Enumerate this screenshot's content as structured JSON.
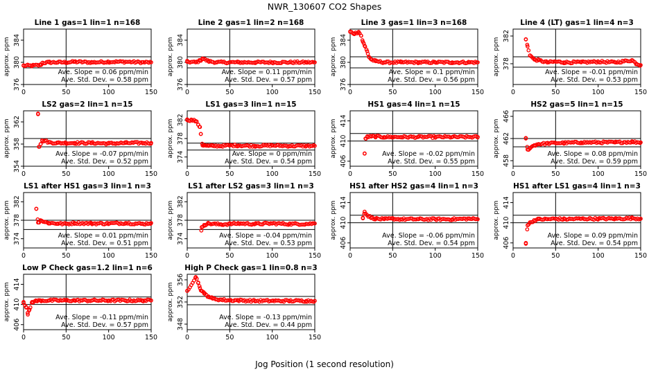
{
  "figure": {
    "title": "NWR_130607  CO2 Shapes",
    "xlabel": "Jog Position (1 second resolution)",
    "ylabel": "approx. ppm",
    "marker_color": "#ff0000",
    "x_ticks": [
      "0",
      "50",
      "100",
      "150"
    ]
  },
  "chart_data": [
    {
      "type": "scatter",
      "title": "Line 1 gas=1 lin=1 n=168",
      "ylabel": "approx. ppm",
      "xlim": [
        0,
        150
      ],
      "ylim": [
        376,
        386
      ],
      "yticks": [
        "376",
        "380",
        "384"
      ],
      "hlines": [
        381,
        379
      ],
      "xgrid": [
        50
      ],
      "slope_text": "Ave. Slope = 0.06 ppm/min",
      "std_text": "Ave. Std. Dev. = 0.58 ppm",
      "x": [
        0,
        10,
        20,
        22,
        30,
        40,
        50,
        60,
        80,
        100,
        120,
        140,
        150
      ],
      "y": [
        379.4,
        379.4,
        379.5,
        379.9,
        380.0,
        380.0,
        380.0,
        380.1,
        380.0,
        380.1,
        380.1,
        380.0,
        380.0
      ]
    },
    {
      "type": "scatter",
      "title": "Line 2 gas=1 lin=2 n=168",
      "ylabel": "approx. ppm",
      "xlim": [
        0,
        150
      ],
      "ylim": [
        376,
        386
      ],
      "yticks": [
        "376",
        "380",
        "384"
      ],
      "hlines": [
        381,
        379
      ],
      "xgrid": [
        50
      ],
      "slope_text": "Ave. Slope = 0.11 ppm/min",
      "std_text": "Ave. Std. Dev. = 0.57 ppm",
      "x": [
        0,
        10,
        15,
        18,
        25,
        35,
        50,
        60,
        80,
        100,
        120,
        140,
        150
      ],
      "y": [
        380.1,
        380.0,
        380.3,
        380.7,
        380.2,
        380.0,
        380.0,
        380.0,
        380.0,
        380.0,
        380.0,
        380.0,
        380.0
      ]
    },
    {
      "type": "scatter",
      "title": "Line 3 gas=1 lin=3 n=168",
      "ylabel": "approx. ppm",
      "xlim": [
        0,
        150
      ],
      "ylim": [
        376,
        386
      ],
      "yticks": [
        "376",
        "380",
        "384"
      ],
      "hlines": [
        381,
        379
      ],
      "xgrid": [
        50
      ],
      "slope_text": "Ave. Slope = 0.1 ppm/min",
      "std_text": "Ave. Std. Dev. = 0.56 ppm",
      "x": [
        0,
        5,
        10,
        13,
        15,
        17,
        20,
        22,
        25,
        30,
        40,
        60,
        80,
        100,
        120,
        140,
        150
      ],
      "y": [
        385.5,
        385.2,
        385.5,
        384.8,
        383.7,
        383.0,
        382.0,
        381.0,
        380.5,
        380.2,
        380.0,
        380.0,
        380.0,
        380.0,
        380.0,
        380.0,
        380.0
      ]
    },
    {
      "type": "scatter",
      "title": "Line 4 (LT) gas=1 lin=4 n=3",
      "ylabel": "approx. ppm",
      "xlim": [
        0,
        150
      ],
      "ylim": [
        375,
        383
      ],
      "yticks": [
        "378",
        "382"
      ],
      "hlines": [
        379,
        377.5
      ],
      "xgrid": [
        50
      ],
      "slope_text": "Ave. Slope = -0.01 ppm/min",
      "std_text": "Ave. Std. Dev. = 0.53 ppm",
      "x": [
        15,
        17,
        20,
        25,
        30,
        40,
        50,
        60,
        80,
        100,
        120,
        140,
        145,
        150
      ],
      "y": [
        381.5,
        380.5,
        379.2,
        378.6,
        378.5,
        378.2,
        378.3,
        378.2,
        378.2,
        378.3,
        378.2,
        378.5,
        378.0,
        377.8
      ]
    },
    {
      "type": "scatter",
      "title": "LS2 gas=2 lin=1 n=15",
      "ylabel": "approx. ppm",
      "xlim": [
        0,
        150
      ],
      "ylim": [
        354,
        364
      ],
      "yticks": [
        "354",
        "358",
        "362"
      ],
      "hlines": [
        359,
        357.5
      ],
      "xgrid": [
        50
      ],
      "slope_text": "Ave. Slope = -0.07 ppm/min",
      "std_text": "Ave. Std. Dev. = 0.52 ppm",
      "x": [
        17,
        18,
        20,
        22,
        25,
        30,
        40,
        50,
        60,
        80,
        100,
        120,
        140,
        150
      ],
      "y": [
        363.5,
        357.5,
        358.0,
        358.6,
        358.6,
        358.3,
        358.2,
        358.2,
        358.2,
        358.2,
        358.1,
        358.2,
        358.2,
        358.2
      ]
    },
    {
      "type": "scatter",
      "title": "LS1 gas=3 lin=1 n=15",
      "ylabel": "approx. ppm",
      "xlim": [
        0,
        150
      ],
      "ylim": [
        372,
        384
      ],
      "yticks": [
        "374",
        "378",
        "382"
      ],
      "hlines": [
        377,
        375.5
      ],
      "xgrid": [
        50
      ],
      "slope_text": "Ave. Slope = 0 ppm/min",
      "std_text": "Ave. Std. Dev. = 0.54 ppm",
      "x": [
        0,
        5,
        10,
        13,
        15,
        16,
        18,
        20,
        25,
        30,
        40,
        50,
        60,
        80,
        100,
        120,
        140,
        150
      ],
      "y": [
        382.0,
        382.0,
        381.8,
        381.0,
        380.5,
        379.0,
        376.5,
        376.5,
        376.4,
        376.4,
        376.4,
        376.5,
        376.5,
        376.4,
        376.5,
        376.4,
        376.4,
        376.4
      ]
    },
    {
      "type": "scatter",
      "title": "HS1 gas=4 lin=1 n=15",
      "ylabel": "approx. ppm",
      "xlim": [
        0,
        150
      ],
      "ylim": [
        405,
        416
      ],
      "yticks": [
        "406",
        "410",
        "414"
      ],
      "hlines": [
        411.5,
        410
      ],
      "xgrid": [
        50
      ],
      "slope_text": "Ave. Slope = -0.02 ppm/min",
      "std_text": "Ave. Std. Dev. = 0.55 ppm",
      "x": [
        17,
        18,
        20,
        25,
        30,
        40,
        50,
        60,
        80,
        100,
        120,
        140,
        150
      ],
      "y": [
        407.5,
        410.5,
        410.8,
        410.9,
        410.9,
        410.8,
        410.8,
        410.8,
        410.8,
        410.8,
        410.8,
        410.8,
        410.8
      ]
    },
    {
      "type": "scatter",
      "title": "HS2 gas=5 lin=1 n=15",
      "ylabel": "approx. ppm",
      "xlim": [
        0,
        150
      ],
      "ylim": [
        457,
        467
      ],
      "yticks": [
        "458",
        "462",
        "466"
      ],
      "hlines": [
        462,
        460.5
      ],
      "xgrid": [
        50
      ],
      "slope_text": "Ave. Slope = 0.08 ppm/min",
      "std_text": "Ave. Std. Dev. = 0.59 ppm",
      "x": [
        15,
        17,
        20,
        25,
        30,
        40,
        50,
        60,
        80,
        100,
        120,
        140,
        150
      ],
      "y": [
        462.0,
        460.0,
        460.3,
        460.8,
        461.0,
        461.1,
        461.2,
        461.2,
        461.3,
        461.3,
        461.3,
        461.4,
        461.3
      ]
    },
    {
      "type": "scatter",
      "title": "LS1 after HS1 gas=3 lin=1 n=3",
      "ylabel": "approx. ppm",
      "xlim": [
        0,
        150
      ],
      "ylim": [
        372,
        384
      ],
      "yticks": [
        "374",
        "378",
        "382"
      ],
      "hlines": [
        378,
        376
      ],
      "xgrid": [
        50
      ],
      "slope_text": "Ave. Slope = 0.01 ppm/min",
      "std_text": "Ave. Std. Dev. = 0.51 ppm",
      "x": [
        15,
        17,
        20,
        25,
        30,
        40,
        50,
        60,
        80,
        100,
        120,
        140,
        150
      ],
      "y": [
        380.5,
        377.5,
        378.0,
        377.6,
        377.4,
        377.3,
        377.2,
        377.4,
        377.3,
        377.3,
        377.4,
        377.2,
        377.4
      ]
    },
    {
      "type": "scatter",
      "title": "LS1 after LS2 gas=3 lin=1 n=3",
      "ylabel": "approx. ppm",
      "xlim": [
        0,
        150
      ],
      "ylim": [
        372,
        384
      ],
      "yticks": [
        "374",
        "378",
        "382"
      ],
      "hlines": [
        378,
        376
      ],
      "xgrid": [
        50
      ],
      "slope_text": "Ave. Slope = -0.04 ppm/min",
      "std_text": "Ave. Std. Dev. = 0.53 ppm",
      "x": [
        15,
        17,
        20,
        25,
        30,
        40,
        50,
        60,
        80,
        100,
        120,
        140,
        150
      ],
      "y": [
        372.0,
        376.5,
        377.0,
        377.3,
        377.2,
        377.1,
        377.2,
        377.3,
        377.2,
        377.3,
        377.2,
        377.2,
        377.3
      ]
    },
    {
      "type": "scatter",
      "title": "HS1 after HS2 gas=4 lin=1 n=3",
      "ylabel": "approx. ppm",
      "xlim": [
        0,
        150
      ],
      "ylim": [
        405,
        416
      ],
      "yticks": [
        "406",
        "410",
        "414"
      ],
      "hlines": [
        411.5,
        410
      ],
      "xgrid": [
        50
      ],
      "slope_text": "Ave. Slope = -0.06 ppm/min",
      "std_text": "Ave. Std. Dev. = 0.54 ppm",
      "x": [
        15,
        17,
        20,
        25,
        30,
        40,
        50,
        60,
        80,
        100,
        120,
        140,
        150
      ],
      "y": [
        411.0,
        412.2,
        411.5,
        411.0,
        410.8,
        410.7,
        410.8,
        410.7,
        410.7,
        410.7,
        410.7,
        410.8,
        410.7
      ]
    },
    {
      "type": "scatter",
      "title": "HS1 after LS1 gas=4 lin=1 n=3",
      "ylabel": "approx. ppm",
      "xlim": [
        0,
        150
      ],
      "ylim": [
        405,
        416
      ],
      "yticks": [
        "406",
        "410",
        "414"
      ],
      "hlines": [
        411.5,
        410
      ],
      "xgrid": [
        50
      ],
      "slope_text": "Ave. Slope = 0.09 ppm/min",
      "std_text": "Ave. Std. Dev. = 0.54 ppm",
      "x": [
        15,
        17,
        20,
        25,
        30,
        40,
        50,
        60,
        80,
        100,
        120,
        140,
        150
      ],
      "y": [
        406.0,
        409.5,
        410.0,
        410.5,
        410.7,
        410.7,
        410.8,
        410.7,
        410.8,
        410.8,
        410.8,
        410.9,
        410.8
      ]
    },
    {
      "type": "scatter",
      "title": "Low P Check gas=1.2 lin=1 n=6",
      "ylabel": "approx. ppm",
      "xlim": [
        0,
        150
      ],
      "ylim": [
        405,
        416
      ],
      "yticks": [
        "406",
        "410",
        "414"
      ],
      "hlines": [
        411.5,
        410
      ],
      "xgrid": [
        50
      ],
      "slope_text": "Ave. Slope = -0.11 ppm/min",
      "std_text": "Ave. Std. Dev. = 0.57 ppm",
      "x": [
        0,
        3,
        5,
        7,
        10,
        15,
        20,
        30,
        40,
        50,
        60,
        80,
        100,
        120,
        140,
        150
      ],
      "y": [
        410.5,
        409.5,
        408.0,
        409.0,
        410.5,
        410.7,
        410.8,
        410.8,
        410.8,
        410.8,
        410.8,
        410.8,
        410.8,
        410.8,
        410.8,
        410.8
      ]
    },
    {
      "type": "scatter",
      "title": "High P Check gas=1 lin=0.8 n=3",
      "ylabel": "approx. ppm",
      "xlim": [
        0,
        150
      ],
      "ylim": [
        347,
        357
      ],
      "yticks": [
        "348",
        "352",
        "356"
      ],
      "hlines": [
        353,
        351.5
      ],
      "xgrid": [
        50
      ],
      "slope_text": "Ave. Slope = -0.13 ppm/min",
      "std_text": "Ave. Std. Dev. = 0.44 ppm",
      "x": [
        0,
        10,
        13,
        15,
        17,
        20,
        25,
        30,
        40,
        50,
        60,
        80,
        100,
        120,
        140,
        150
      ],
      "y": [
        354.0,
        356.5,
        355.5,
        354.5,
        354.0,
        353.5,
        353.0,
        352.6,
        352.4,
        352.3,
        352.3,
        352.2,
        352.2,
        352.2,
        352.2,
        352.2
      ]
    }
  ]
}
